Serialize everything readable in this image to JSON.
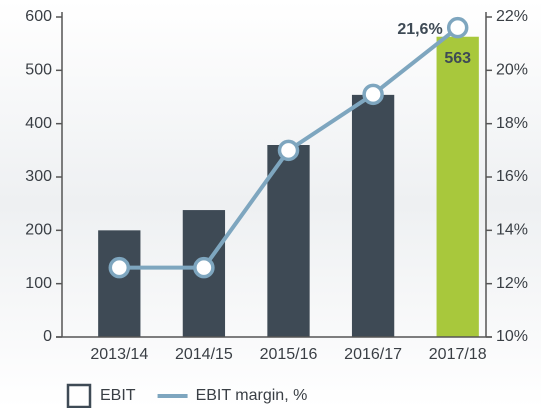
{
  "chart_data": {
    "type": "bar",
    "categories": [
      "2013/14",
      "2014/15",
      "2015/16",
      "2016/17",
      "2017/18"
    ],
    "series": [
      {
        "name": "EBIT",
        "type": "bar",
        "color": "#3e4a55",
        "colors": [
          "#3e4a55",
          "#3e4a55",
          "#3e4a55",
          "#3e4a55",
          "#a8c83c"
        ],
        "values": [
          200,
          238,
          360,
          454,
          563
        ],
        "value_labels": [
          null,
          null,
          null,
          null,
          "563"
        ]
      },
      {
        "name": "EBIT margin, %",
        "type": "line",
        "axis": "y2",
        "color": "#7ea6bf",
        "values": [
          12.6,
          12.6,
          17.0,
          19.1,
          21.6
        ],
        "value_labels": [
          null,
          null,
          null,
          null,
          "21,6%"
        ]
      }
    ],
    "ylim": [
      0,
      600
    ],
    "yticks": [
      0,
      100,
      200,
      300,
      400,
      500,
      600
    ],
    "y2lim": [
      10,
      22
    ],
    "y2ticks": [
      {
        "value": 10,
        "label": "10%"
      },
      {
        "value": 12,
        "label": "12%"
      },
      {
        "value": 14,
        "label": "14%"
      },
      {
        "value": 16,
        "label": "16%"
      },
      {
        "value": 18,
        "label": "18%"
      },
      {
        "value": 20,
        "label": "20%"
      },
      {
        "value": 22,
        "label": "22%"
      }
    ],
    "legend": "bottom-left"
  }
}
